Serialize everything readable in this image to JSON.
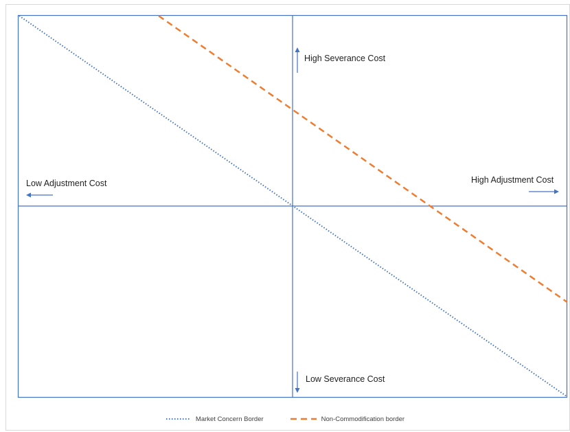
{
  "labels": {
    "high_severance": "High Severance Cost",
    "low_severance": "Low Severance Cost",
    "low_adjustment": "Low Adjustment Cost",
    "high_adjustment": "High Adjustment Cost"
  },
  "legend": {
    "market_concern": "Market Concern Border",
    "non_commodification": "Non-Commodification border"
  },
  "colors": {
    "axis": "#4472c4",
    "market_concern": "#4472c4",
    "non_commodification": "#ed7d31",
    "frame": "#d9d9d9"
  }
}
